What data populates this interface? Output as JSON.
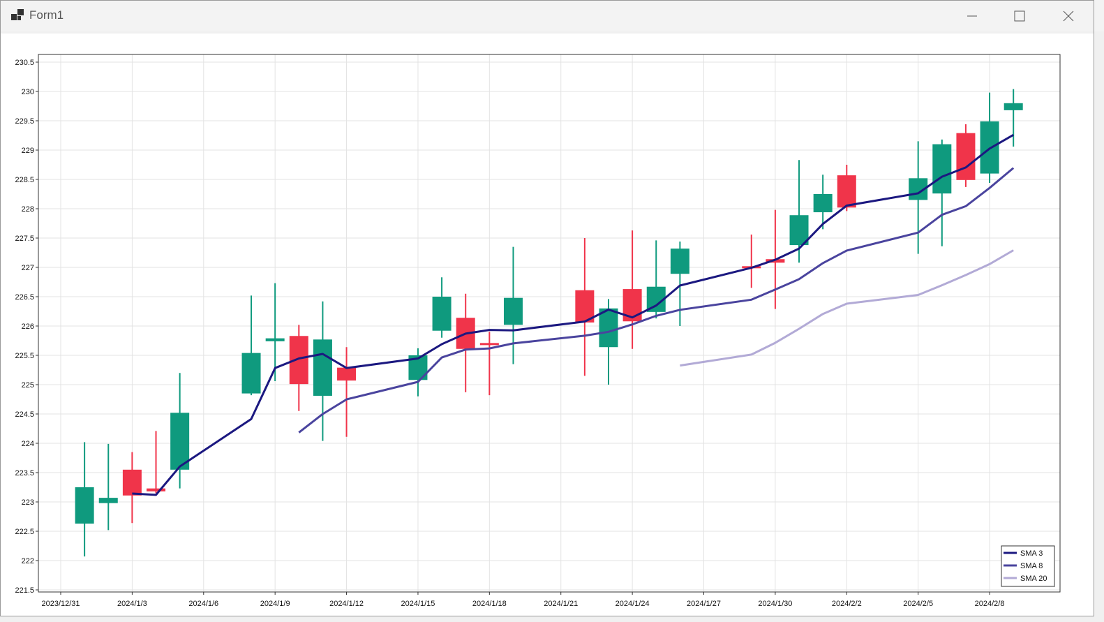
{
  "window": {
    "title": "Form1"
  },
  "chart_data": {
    "type": "candlestick",
    "title": "",
    "ylim": [
      221.5,
      230.5
    ],
    "y_ticks": [
      "221.5",
      "222",
      "222.5",
      "223",
      "223.5",
      "224",
      "224.5",
      "225",
      "225.5",
      "226",
      "226.5",
      "227",
      "227.5",
      "228",
      "228.5",
      "229",
      "229.5",
      "230",
      "230.5"
    ],
    "x_ticks": [
      "2023/12/31",
      "2024/1/3",
      "2024/1/6",
      "2024/1/9",
      "2024/1/12",
      "2024/1/15",
      "2024/1/18",
      "2024/1/21",
      "2024/1/24",
      "2024/1/27",
      "2024/1/30",
      "2024/2/2",
      "2024/2/5",
      "2024/2/8"
    ],
    "grid": true,
    "legend_position": "bottom-right",
    "colors": {
      "up": "#0f9a7e",
      "down": "#f0344a",
      "sma3": "#1b1880",
      "sma8": "#4a449e",
      "sma20": "#b2aad6"
    },
    "candles": [
      {
        "date": "2024-01-01",
        "open": 222.63,
        "high": 224.02,
        "low": 222.07,
        "close": 223.25
      },
      {
        "date": "2024-01-02",
        "open": 222.98,
        "high": 223.99,
        "low": 222.52,
        "close": 223.07
      },
      {
        "date": "2024-01-03",
        "open": 223.55,
        "high": 223.85,
        "low": 222.64,
        "close": 223.11
      },
      {
        "date": "2024-01-04",
        "open": 223.23,
        "high": 224.21,
        "low": 223.15,
        "close": 223.18
      },
      {
        "date": "2024-01-05",
        "open": 223.55,
        "high": 225.2,
        "low": 223.23,
        "close": 224.52
      },
      {
        "date": "2024-01-08",
        "open": 224.85,
        "high": 226.52,
        "low": 224.82,
        "close": 225.54
      },
      {
        "date": "2024-01-09",
        "open": 225.74,
        "high": 226.73,
        "low": 225.06,
        "close": 225.79
      },
      {
        "date": "2024-01-10",
        "open": 225.83,
        "high": 226.02,
        "low": 224.55,
        "close": 225.01
      },
      {
        "date": "2024-01-11",
        "open": 224.81,
        "high": 226.42,
        "low": 224.04,
        "close": 225.77
      },
      {
        "date": "2024-01-12",
        "open": 225.29,
        "high": 225.64,
        "low": 224.11,
        "close": 225.07
      },
      {
        "date": "2024-01-15",
        "open": 225.08,
        "high": 225.62,
        "low": 224.8,
        "close": 225.5
      },
      {
        "date": "2024-01-16",
        "open": 225.92,
        "high": 226.83,
        "low": 225.8,
        "close": 226.5
      },
      {
        "date": "2024-01-17",
        "open": 226.14,
        "high": 226.55,
        "low": 224.87,
        "close": 225.61
      },
      {
        "date": "2024-01-18",
        "open": 225.71,
        "high": 225.9,
        "low": 224.82,
        "close": 225.69
      },
      {
        "date": "2024-01-19",
        "open": 226.02,
        "high": 227.35,
        "low": 225.35,
        "close": 226.48
      },
      {
        "date": "2024-01-22",
        "open": 226.61,
        "high": 227.5,
        "low": 225.15,
        "close": 226.06
      },
      {
        "date": "2024-01-23",
        "open": 225.64,
        "high": 226.46,
        "low": 225.0,
        "close": 226.3
      },
      {
        "date": "2024-01-24",
        "open": 226.63,
        "high": 227.63,
        "low": 225.61,
        "close": 226.08
      },
      {
        "date": "2024-01-25",
        "open": 226.24,
        "high": 227.46,
        "low": 226.13,
        "close": 226.67
      },
      {
        "date": "2024-01-26",
        "open": 226.89,
        "high": 227.44,
        "low": 226.0,
        "close": 227.32
      },
      {
        "date": "2024-01-29",
        "open": 227.02,
        "high": 227.56,
        "low": 226.65,
        "close": 226.99
      },
      {
        "date": "2024-01-30",
        "open": 227.14,
        "high": 227.98,
        "low": 226.29,
        "close": 227.08
      },
      {
        "date": "2024-01-31",
        "open": 227.38,
        "high": 228.83,
        "low": 227.08,
        "close": 227.89
      },
      {
        "date": "2024-02-01",
        "open": 227.94,
        "high": 228.58,
        "low": 227.65,
        "close": 228.25
      },
      {
        "date": "2024-02-02",
        "open": 228.57,
        "high": 228.75,
        "low": 227.96,
        "close": 228.02
      },
      {
        "date": "2024-02-05",
        "open": 228.15,
        "high": 229.15,
        "low": 227.23,
        "close": 228.52
      },
      {
        "date": "2024-02-06",
        "open": 228.26,
        "high": 229.18,
        "low": 227.36,
        "close": 229.1
      },
      {
        "date": "2024-02-07",
        "open": 229.29,
        "high": 229.44,
        "low": 228.37,
        "close": 228.49
      },
      {
        "date": "2024-02-08",
        "open": 228.6,
        "high": 229.98,
        "low": 228.44,
        "close": 229.49
      },
      {
        "date": "2024-02-09",
        "open": 229.68,
        "high": 230.04,
        "low": 229.06,
        "close": 229.8
      }
    ],
    "series": [
      {
        "name": "SMA 3",
        "period": 3
      },
      {
        "name": "SMA 8",
        "period": 8
      },
      {
        "name": "SMA 20",
        "period": 20
      }
    ]
  }
}
